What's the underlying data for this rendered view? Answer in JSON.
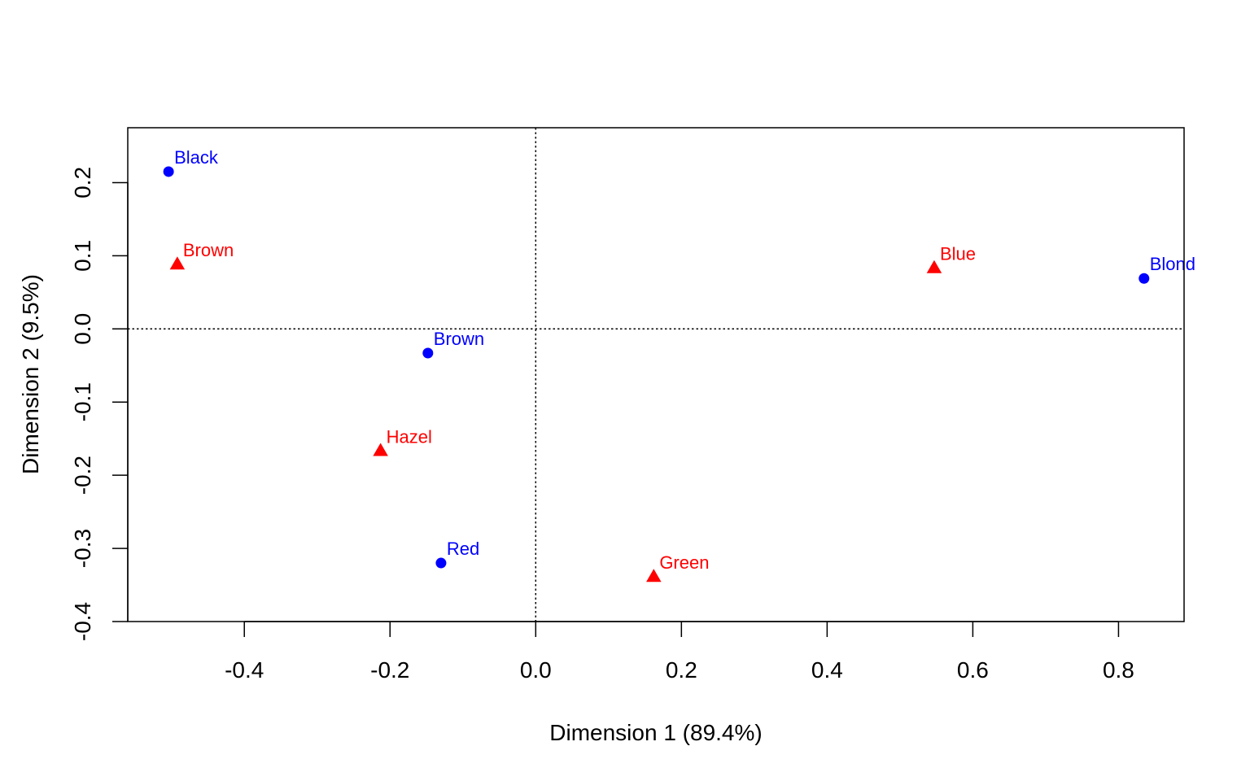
{
  "chart_data": {
    "type": "scatter",
    "title": "",
    "xlabel": "Dimension 1 (89.4%)",
    "ylabel": "Dimension 2 (9.5%)",
    "xlim": [
      -0.56,
      0.89
    ],
    "ylim": [
      -0.4,
      0.275
    ],
    "xticks": [
      -0.4,
      -0.2,
      0.0,
      0.2,
      0.4,
      0.6,
      0.8
    ],
    "xtick_labels": [
      "-0.4",
      "-0.2",
      "0.0",
      "0.2",
      "0.4",
      "0.6",
      "0.8"
    ],
    "yticks": [
      -0.4,
      -0.3,
      -0.2,
      -0.1,
      0.0,
      0.1,
      0.2
    ],
    "ytick_labels": [
      "-0.4",
      "-0.3",
      "-0.2",
      "-0.1",
      "0.0",
      "0.1",
      "0.2"
    ],
    "reference_lines": {
      "x": 0,
      "y": 0,
      "style": "dotted"
    },
    "grid": false,
    "series": [
      {
        "color": "#0000ff",
        "marker": "circle",
        "points": [
          {
            "label": "Black",
            "x": -0.504,
            "y": 0.215
          },
          {
            "label": "Brown",
            "x": -0.148,
            "y": -0.033
          },
          {
            "label": "Red",
            "x": -0.13,
            "y": -0.32
          },
          {
            "label": "Blond",
            "x": 0.835,
            "y": 0.069
          }
        ]
      },
      {
        "color": "#ff0000",
        "marker": "triangle",
        "points": [
          {
            "label": "Brown",
            "x": -0.492,
            "y": 0.088
          },
          {
            "label": "Blue",
            "x": 0.547,
            "y": 0.083
          },
          {
            "label": "Hazel",
            "x": -0.213,
            "y": -0.167
          },
          {
            "label": "Green",
            "x": 0.162,
            "y": -0.339
          }
        ]
      }
    ]
  }
}
